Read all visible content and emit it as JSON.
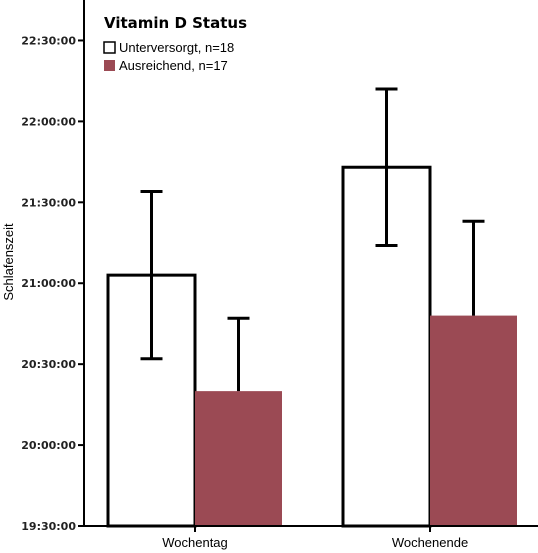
{
  "chart_data": {
    "type": "bar",
    "categories": [
      "Wochentag",
      "Wochenende"
    ],
    "ylabel": "Schlafenszeit",
    "ylim": [
      "19:30:00",
      "22:45:00"
    ],
    "yticks": [
      "19:30:00",
      "20:00:00",
      "20:30:00",
      "21:00:00",
      "21:30:00",
      "22:00:00",
      "22:30:00"
    ],
    "legend": {
      "title": "Vitamin D Status",
      "position": "top-left"
    },
    "series": [
      {
        "name": "Unterversorgt, n=18",
        "color": "#ffffff",
        "values": [
          "21:03:00",
          "21:43:00"
        ],
        "error_low": [
          "20:32:00",
          "21:14:00"
        ],
        "error_high": [
          "21:34:00",
          "22:12:00"
        ]
      },
      {
        "name": "Ausreichend, n=17",
        "color": "#9b4a54",
        "values": [
          "20:20:00",
          "20:48:00"
        ],
        "error_low": [
          "20:20:00",
          "20:48:00"
        ],
        "error_high": [
          "20:47:00",
          "21:23:00"
        ]
      }
    ]
  }
}
